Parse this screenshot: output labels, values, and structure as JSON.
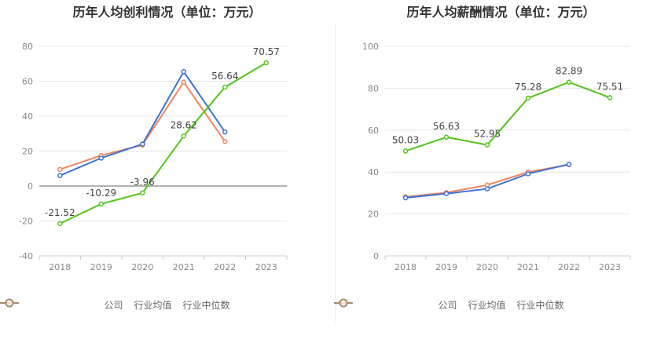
{
  "charts": [
    {
      "title": "历年人均创利情况（单位：万元）",
      "chart_data": {
        "type": "line",
        "categories": [
          "2018",
          "2019",
          "2020",
          "2021",
          "2022",
          "2023"
        ],
        "ylim": [
          -40,
          80
        ],
        "yticks": [
          -40,
          -20,
          0,
          20,
          40,
          60,
          80
        ],
        "grid": true,
        "legend_position": "bottom",
        "series": [
          {
            "name": "公司",
            "color": "#52c41a",
            "values": [
              -21.52,
              -10.29,
              -3.96,
              28.62,
              56.64,
              70.57
            ],
            "labels": [
              "-21.52",
              "-10.29",
              "-3.96",
              "28.62",
              "56.64",
              "70.57"
            ]
          },
          {
            "name": "行业均值",
            "color": "#3b73d6",
            "values": [
              6.0,
              16.0,
              24.0,
              65.5,
              31.0,
              null
            ]
          },
          {
            "name": "行业中位数",
            "color": "#f0845e",
            "values": [
              9.5,
              17.5,
              23.5,
              59.5,
              25.5,
              null
            ]
          }
        ]
      }
    },
    {
      "title": "历年人均薪酬情况（单位：万元）",
      "chart_data": {
        "type": "line",
        "categories": [
          "2018",
          "2019",
          "2020",
          "2021",
          "2022",
          "2023"
        ],
        "ylim": [
          0,
          100
        ],
        "yticks": [
          0,
          20,
          40,
          60,
          80,
          100
        ],
        "grid": true,
        "legend_position": "bottom",
        "series": [
          {
            "name": "公司",
            "color": "#52c41a",
            "values": [
              50.03,
              56.63,
              52.95,
              75.28,
              82.89,
              75.51
            ],
            "labels": [
              "50.03",
              "56.63",
              "52.95",
              "75.28",
              "82.89",
              "75.51"
            ]
          },
          {
            "name": "行业均值",
            "color": "#3b73d6",
            "values": [
              27.7,
              29.7,
              32.0,
              39.2,
              43.7,
              null
            ]
          },
          {
            "name": "行业中位数",
            "color": "#f0845e",
            "values": [
              28.2,
              30.2,
              33.8,
              40.0,
              43.5,
              null
            ]
          }
        ]
      }
    }
  ]
}
